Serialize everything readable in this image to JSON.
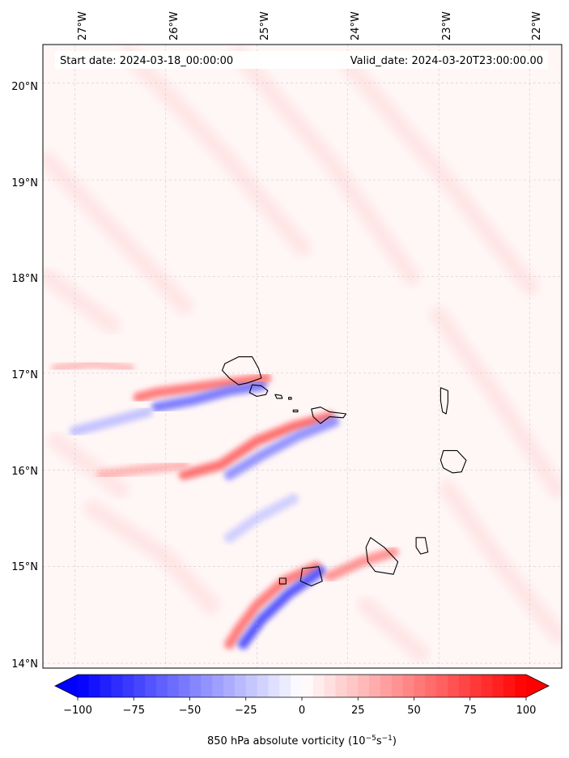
{
  "map": {
    "start_date": "Start date: 2024-03-18_00:00:00",
    "valid_date": "Valid_date: 2024-03-20T23:00:00.00",
    "lon_labels": [
      "27°W",
      "26°W",
      "25°W",
      "24°W",
      "23°W",
      "22°W"
    ],
    "lat_labels": [
      "20°N",
      "19°N",
      "18°N",
      "17°N",
      "16°N",
      "15°N",
      "14°N"
    ],
    "lon_range": [
      -27.35,
      -21.65
    ],
    "lat_range": [
      13.95,
      20.4
    ],
    "lon_ticks": [
      -27,
      -26,
      -25,
      -24,
      -23,
      -22
    ],
    "lat_ticks": [
      20,
      19,
      18,
      17,
      16,
      15,
      14
    ],
    "colormap": "bwr",
    "color_negative": "#0000ff",
    "color_zero": "#ffffff",
    "color_positive": "#ff0000",
    "features": [
      {
        "name": "positive-vorticity-band",
        "type": "band",
        "value": 60,
        "path": [
          [
            -24.2,
            16.55
          ],
          [
            -24.6,
            16.45
          ],
          [
            -25.0,
            16.3
          ],
          [
            -25.4,
            16.05
          ],
          [
            -25.8,
            15.95
          ]
        ]
      },
      {
        "name": "positive-vorticity-band",
        "type": "band",
        "value": 55,
        "path": [
          [
            -24.9,
            16.95
          ],
          [
            -25.3,
            16.9
          ],
          [
            -25.7,
            16.85
          ],
          [
            -26.1,
            16.8
          ],
          [
            -26.3,
            16.75
          ]
        ]
      },
      {
        "name": "negative-vorticity-band",
        "type": "band",
        "value": -55,
        "path": [
          [
            -24.95,
            16.87
          ],
          [
            -25.3,
            16.82
          ],
          [
            -25.7,
            16.72
          ],
          [
            -26.1,
            16.65
          ]
        ]
      },
      {
        "name": "negative-vorticity-band",
        "type": "band",
        "value": -45,
        "path": [
          [
            -24.15,
            16.5
          ],
          [
            -24.55,
            16.35
          ],
          [
            -24.95,
            16.15
          ],
          [
            -25.3,
            15.95
          ]
        ]
      },
      {
        "name": "positive-vorticity-band",
        "type": "band",
        "value": 55,
        "path": [
          [
            -24.35,
            15.0
          ],
          [
            -24.7,
            14.85
          ],
          [
            -25.0,
            14.6
          ],
          [
            -25.2,
            14.35
          ],
          [
            -25.3,
            14.2
          ]
        ]
      },
      {
        "name": "negative-vorticity-band",
        "type": "band",
        "value": -70,
        "path": [
          [
            -24.3,
            14.95
          ],
          [
            -24.65,
            14.72
          ],
          [
            -24.95,
            14.45
          ],
          [
            -25.15,
            14.2
          ]
        ]
      },
      {
        "name": "positive-vorticity-band",
        "type": "band",
        "value": 45,
        "path": [
          [
            -23.5,
            15.15
          ],
          [
            -23.85,
            15.05
          ],
          [
            -24.2,
            14.9
          ]
        ]
      },
      {
        "name": "positive-vorticity-band",
        "type": "band",
        "value": 30,
        "path": [
          [
            -25.8,
            16.05
          ],
          [
            -26.3,
            16.0
          ],
          [
            -26.7,
            15.95
          ]
        ]
      },
      {
        "name": "positive-vorticity-band",
        "type": "band",
        "value": 25,
        "path": [
          [
            -26.4,
            17.05
          ],
          [
            -26.8,
            17.1
          ],
          [
            -27.2,
            17.05
          ]
        ]
      },
      {
        "name": "negative-vorticity-band",
        "type": "band",
        "value": -25,
        "path": [
          [
            -26.2,
            16.6
          ],
          [
            -26.6,
            16.5
          ],
          [
            -27.0,
            16.4
          ]
        ]
      },
      {
        "name": "negative-vorticity-band",
        "type": "band",
        "value": -20,
        "path": [
          [
            -24.6,
            15.7
          ],
          [
            -25.0,
            15.5
          ],
          [
            -25.3,
            15.3
          ]
        ]
      }
    ],
    "islands": [
      {
        "name": "santo-antao-island",
        "outline": [
          [
            -25.35,
            17.1
          ],
          [
            -25.2,
            17.17
          ],
          [
            -25.05,
            17.17
          ],
          [
            -24.98,
            17.05
          ],
          [
            -24.95,
            16.95
          ],
          [
            -25.1,
            16.9
          ],
          [
            -25.2,
            16.88
          ],
          [
            -25.3,
            16.95
          ],
          [
            -25.38,
            17.03
          ]
        ]
      },
      {
        "name": "sao-vicente-island",
        "outline": [
          [
            -25.05,
            16.88
          ],
          [
            -24.95,
            16.87
          ],
          [
            -24.88,
            16.82
          ],
          [
            -24.9,
            16.78
          ],
          [
            -25.0,
            16.76
          ],
          [
            -25.08,
            16.8
          ]
        ]
      },
      {
        "name": "santa-luzia-island",
        "outline": [
          [
            -24.8,
            16.78
          ],
          [
            -24.73,
            16.77
          ],
          [
            -24.72,
            16.74
          ],
          [
            -24.78,
            16.74
          ]
        ]
      },
      {
        "name": "sao-nicolau-island",
        "outline": [
          [
            -24.4,
            16.63
          ],
          [
            -24.3,
            16.65
          ],
          [
            -24.2,
            16.6
          ],
          [
            -24.02,
            16.58
          ],
          [
            -24.05,
            16.54
          ],
          [
            -24.2,
            16.55
          ],
          [
            -24.3,
            16.48
          ],
          [
            -24.38,
            16.55
          ]
        ]
      },
      {
        "name": "sal-island",
        "outline": [
          [
            -22.98,
            16.85
          ],
          [
            -22.9,
            16.82
          ],
          [
            -22.9,
            16.7
          ],
          [
            -22.92,
            16.58
          ],
          [
            -22.96,
            16.6
          ],
          [
            -22.98,
            16.72
          ]
        ]
      },
      {
        "name": "boa-vista-island",
        "outline": [
          [
            -22.95,
            16.2
          ],
          [
            -22.8,
            16.2
          ],
          [
            -22.7,
            16.1
          ],
          [
            -22.75,
            15.98
          ],
          [
            -22.85,
            15.97
          ],
          [
            -22.95,
            16.02
          ],
          [
            -22.98,
            16.1
          ]
        ]
      },
      {
        "name": "maio-island",
        "outline": [
          [
            -23.25,
            15.3
          ],
          [
            -23.15,
            15.3
          ],
          [
            -23.12,
            15.15
          ],
          [
            -23.2,
            15.13
          ],
          [
            -23.25,
            15.2
          ]
        ]
      },
      {
        "name": "santiago-island",
        "outline": [
          [
            -23.75,
            15.3
          ],
          [
            -23.6,
            15.2
          ],
          [
            -23.45,
            15.05
          ],
          [
            -23.5,
            14.92
          ],
          [
            -23.7,
            14.95
          ],
          [
            -23.78,
            15.05
          ],
          [
            -23.8,
            15.2
          ]
        ]
      },
      {
        "name": "fogo-island",
        "outline": [
          [
            -24.5,
            14.98
          ],
          [
            -24.32,
            15.0
          ],
          [
            -24.28,
            14.85
          ],
          [
            -24.4,
            14.8
          ],
          [
            -24.52,
            14.85
          ]
        ]
      },
      {
        "name": "brava-island",
        "outline": [
          [
            -24.75,
            14.88
          ],
          [
            -24.68,
            14.88
          ],
          [
            -24.68,
            14.82
          ],
          [
            -24.75,
            14.82
          ]
        ]
      },
      {
        "name": "raso-island",
        "outline": [
          [
            -24.6,
            16.62
          ],
          [
            -24.55,
            16.62
          ],
          [
            -24.55,
            16.6
          ],
          [
            -24.6,
            16.6
          ]
        ]
      },
      {
        "name": "ilheu-island",
        "outline": [
          [
            -24.65,
            16.75
          ],
          [
            -24.62,
            16.75
          ],
          [
            -24.62,
            16.73
          ],
          [
            -24.65,
            16.73
          ]
        ]
      }
    ]
  },
  "colorbar": {
    "min": -100,
    "max": 100,
    "levels": 40,
    "tick_values": [
      -100,
      -75,
      -50,
      -25,
      0,
      25,
      50,
      75,
      100
    ],
    "tick_labels": [
      "−100",
      "−75",
      "−50",
      "−25",
      "0",
      "25",
      "50",
      "75",
      "100"
    ],
    "label_main": "850 hPa absolute vorticity (10",
    "label_exp1": "−5",
    "label_mid": "s",
    "label_exp2": "−1",
    "label_end": ")"
  }
}
